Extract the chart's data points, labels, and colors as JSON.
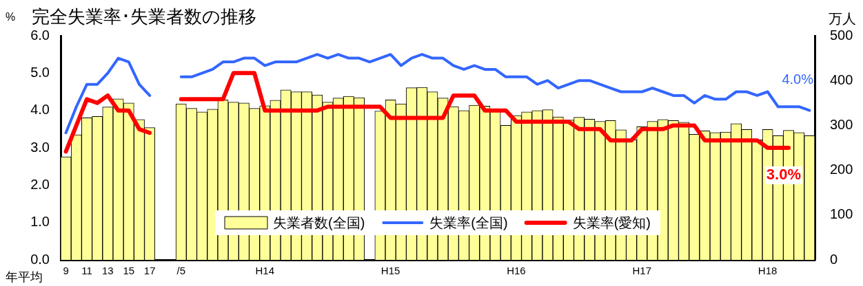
{
  "chart_data": {
    "type": "bar",
    "title": "完全失業率･失業者数の推移",
    "ylabel": "%",
    "y2label": "万人",
    "annotations": [
      "年平均"
    ],
    "categories": [
      "9",
      null,
      "11",
      null,
      "13",
      null,
      "15",
      null,
      "17",
      null,
      null,
      "/5",
      null,
      null,
      null,
      null,
      null,
      null,
      null,
      "H14",
      null,
      null,
      null,
      null,
      null,
      null,
      null,
      null,
      null,
      null,
      null,
      "H15",
      null,
      null,
      null,
      null,
      null,
      null,
      null,
      null,
      null,
      null,
      null,
      "H16",
      null,
      null,
      null,
      null,
      null,
      null,
      null,
      null,
      null,
      null,
      null,
      "H17",
      null,
      null,
      null,
      null,
      null,
      null,
      null,
      null,
      null,
      null,
      null,
      "H18",
      null,
      null,
      null,
      null
    ],
    "series": [
      {
        "name": "失業者数(全国)",
        "axis": "y2",
        "color": "#ffff99",
        "values": [
          230,
          279,
          317,
          320,
          341,
          359,
          350,
          313,
          295,
          null,
          null,
          348,
          338,
          330,
          336,
          357,
          352,
          350,
          338,
          344,
          356,
          379,
          375,
          375,
          368,
          352,
          361,
          365,
          362,
          null,
          332,
          357,
          348,
          384,
          385,
          375,
          361,
          342,
          333,
          345,
          343,
          333,
          300,
          322,
          330,
          333,
          335,
          319,
          312,
          318,
          314,
          309,
          311,
          290,
          268,
          297,
          309,
          313,
          311,
          307,
          280,
          288,
          284,
          285,
          304,
          291,
          268,
          291,
          277,
          289,
          284,
          277
        ]
      },
      {
        "name": "失業率(全国)",
        "type": "line",
        "color": "#3366ff",
        "values": [
          3.4,
          4.1,
          4.7,
          4.7,
          5.0,
          5.4,
          5.3,
          4.7,
          4.4,
          null,
          null,
          4.9,
          4.9,
          5.0,
          5.1,
          5.3,
          5.3,
          5.4,
          5.4,
          5.2,
          5.3,
          5.3,
          5.3,
          5.4,
          5.5,
          5.4,
          5.5,
          5.4,
          5.4,
          5.3,
          5.4,
          5.5,
          5.2,
          5.4,
          5.5,
          5.4,
          5.4,
          5.2,
          5.1,
          5.2,
          5.1,
          5.1,
          4.9,
          4.9,
          4.9,
          4.7,
          4.8,
          4.6,
          4.7,
          4.8,
          4.8,
          4.7,
          4.6,
          4.5,
          4.5,
          4.5,
          4.6,
          4.5,
          4.4,
          4.4,
          4.2,
          4.4,
          4.3,
          4.3,
          4.5,
          4.5,
          4.4,
          4.5,
          4.1,
          4.1,
          4.1,
          4.0
        ],
        "value_labels": [
          null,
          null,
          null,
          null,
          null,
          null,
          null,
          null,
          null,
          null,
          null,
          null,
          null,
          null,
          null,
          null,
          null,
          null,
          null,
          null,
          null,
          null,
          null,
          null,
          null,
          null,
          null,
          null,
          null,
          null,
          null,
          null,
          null,
          null,
          null,
          null,
          null,
          null,
          null,
          null,
          null,
          null,
          null,
          null,
          null,
          null,
          null,
          null,
          null,
          null,
          null,
          null,
          null,
          null,
          null,
          null,
          null,
          null,
          null,
          null,
          null,
          null,
          null,
          null,
          null,
          null,
          null,
          null,
          null,
          null,
          null,
          "4.0%"
        ]
      },
      {
        "name": "失業率(愛知)",
        "type": "line",
        "color": "#ff0000",
        "values": [
          2.9,
          3.6,
          4.3,
          4.2,
          4.4,
          4.0,
          4.0,
          3.5,
          3.4,
          null,
          null,
          4.3,
          4.3,
          4.3,
          4.3,
          4.3,
          5.0,
          5.0,
          5.0,
          4.0,
          4.0,
          4.0,
          4.0,
          4.0,
          4.0,
          4.1,
          4.1,
          4.1,
          4.1,
          4.1,
          4.1,
          3.8,
          3.8,
          3.8,
          3.8,
          3.8,
          3.8,
          4.4,
          4.4,
          4.4,
          4.0,
          4.0,
          4.0,
          3.7,
          3.7,
          3.7,
          3.7,
          3.7,
          3.7,
          3.5,
          3.5,
          3.5,
          3.2,
          3.2,
          3.2,
          3.5,
          3.5,
          3.5,
          3.6,
          3.6,
          3.6,
          3.2,
          3.2,
          3.2,
          3.2,
          3.2,
          3.2,
          3.0,
          3.0,
          3.0,
          null,
          null
        ],
        "value_labels": [
          null,
          null,
          null,
          null,
          null,
          null,
          null,
          null,
          null,
          null,
          null,
          null,
          null,
          null,
          null,
          null,
          null,
          null,
          null,
          null,
          null,
          null,
          null,
          null,
          null,
          null,
          null,
          null,
          null,
          null,
          null,
          null,
          null,
          null,
          null,
          null,
          null,
          null,
          null,
          null,
          null,
          null,
          null,
          null,
          null,
          null,
          null,
          null,
          null,
          null,
          null,
          null,
          null,
          null,
          null,
          null,
          null,
          null,
          null,
          null,
          null,
          null,
          null,
          null,
          null,
          null,
          null,
          null,
          null,
          "3.0%",
          null,
          null
        ]
      }
    ],
    "ylim": [
      0,
      6
    ],
    "yticks": [
      {
        "value": 0,
        "label": "0.0"
      },
      {
        "value": 1,
        "label": "1.0"
      },
      {
        "value": 2,
        "label": "2.0"
      },
      {
        "value": 3,
        "label": "3.0"
      },
      {
        "value": 4,
        "label": "4.0"
      },
      {
        "value": 5,
        "label": "5.0"
      },
      {
        "value": 6,
        "label": "6.0"
      }
    ],
    "y2lim": [
      0,
      500
    ],
    "y2ticks": [
      0,
      100,
      200,
      300,
      400,
      500
    ],
    "grid": false,
    "legend": "bottom",
    "marker": "none",
    "line_style": "solid"
  }
}
